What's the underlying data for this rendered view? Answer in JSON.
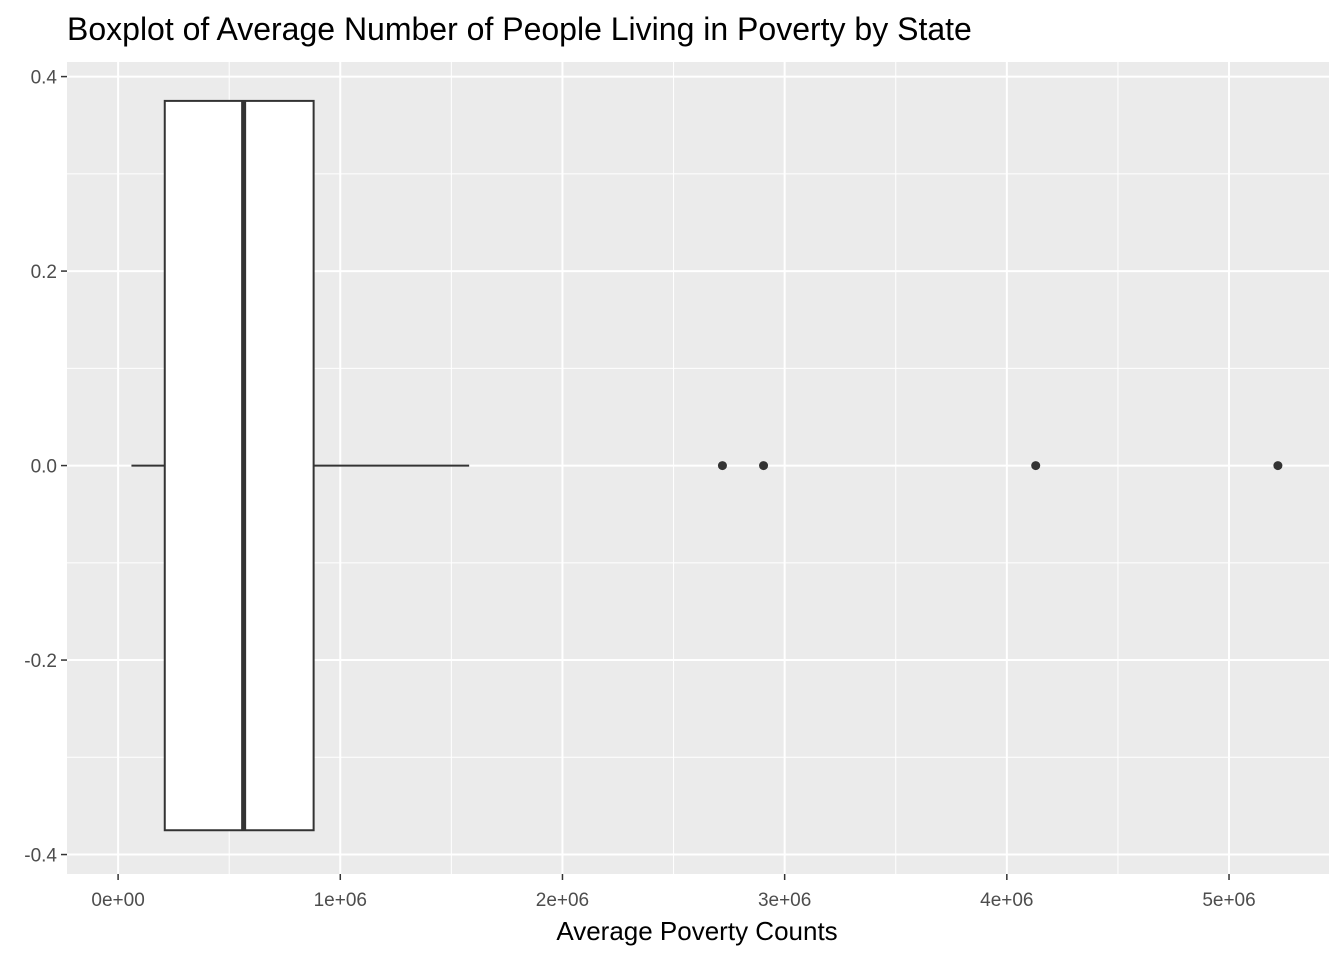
{
  "chart_data": {
    "type": "boxplot",
    "title": "Boxplot of Average Number of People Living in Poverty by State",
    "xlabel": "Average Poverty Counts",
    "ylabel": "",
    "orientation": "horizontal",
    "xlim": [
      -230000,
      5450000
    ],
    "ylim": [
      -0.42,
      0.415
    ],
    "x_ticks": [
      0,
      1000000,
      2000000,
      3000000,
      4000000,
      5000000
    ],
    "x_tick_labels": [
      "0e+00",
      "1e+06",
      "2e+06",
      "3e+06",
      "4e+06",
      "5e+06"
    ],
    "y_ticks": [
      -0.4,
      -0.2,
      0.0,
      0.2,
      0.4
    ],
    "y_tick_labels": [
      "-0.4",
      "-0.2",
      "0.0",
      "0.2",
      "0.4"
    ],
    "box": {
      "whisker_low": 60000,
      "q1": 210000,
      "median": 565000,
      "q3": 880000,
      "whisker_high": 1580000,
      "y_center": 0,
      "half_height": 0.375
    },
    "outliers": [
      2720000,
      2905000,
      4130000,
      5220000
    ],
    "grid": true,
    "panel_background": "#ebebeb",
    "grid_color": "#ffffff",
    "box_fill": "#ffffff",
    "line_color": "#333333"
  }
}
